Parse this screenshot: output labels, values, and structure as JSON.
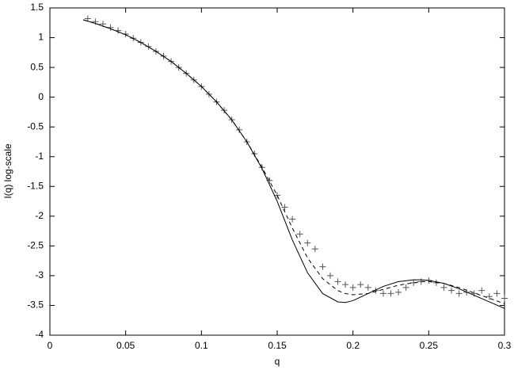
{
  "chart_data": {
    "type": "line",
    "xlabel": "q",
    "ylabel": "I(q) log-scale",
    "xlim": [
      0,
      0.3
    ],
    "ylim": [
      -4,
      1.5
    ],
    "xticks": [
      0,
      0.05,
      0.1,
      0.15,
      0.2,
      0.25,
      0.3
    ],
    "yticks": [
      1.5,
      1,
      0.5,
      0,
      -0.5,
      -1,
      -1.5,
      -2,
      -2.5,
      -3,
      -3.5,
      -4
    ],
    "series": [
      {
        "type": "scatter",
        "color": "#555555",
        "x": [
          0.025,
          0.03,
          0.035,
          0.04,
          0.045,
          0.05,
          0.055,
          0.06,
          0.065,
          0.07,
          0.075,
          0.08,
          0.085,
          0.09,
          0.095,
          0.1,
          0.105,
          0.11,
          0.115,
          0.12,
          0.125,
          0.13,
          0.135,
          0.14,
          0.145,
          0.15,
          0.155,
          0.16,
          0.165,
          0.17,
          0.175,
          0.18,
          0.185,
          0.19,
          0.195,
          0.2,
          0.205,
          0.21,
          0.215,
          0.22,
          0.225,
          0.23,
          0.235,
          0.24,
          0.245,
          0.25,
          0.255,
          0.26,
          0.265,
          0.27,
          0.275,
          0.28,
          0.285,
          0.29,
          0.295,
          0.3
        ],
        "values": [
          1.32,
          1.27,
          1.23,
          1.17,
          1.12,
          1.06,
          0.99,
          0.92,
          0.85,
          0.77,
          0.69,
          0.6,
          0.5,
          0.4,
          0.29,
          0.18,
          0.05,
          -0.08,
          -0.22,
          -0.38,
          -0.55,
          -0.75,
          -0.95,
          -1.18,
          -1.4,
          -1.65,
          -1.85,
          -2.05,
          -2.3,
          -2.45,
          -2.55,
          -2.85,
          -3.0,
          -3.1,
          -3.15,
          -3.2,
          -3.15,
          -3.2,
          -3.25,
          -3.3,
          -3.3,
          -3.28,
          -3.2,
          -3.12,
          -3.1,
          -3.08,
          -3.12,
          -3.2,
          -3.25,
          -3.3,
          -3.28,
          -3.3,
          -3.25,
          -3.35,
          -3.3,
          -3.38
        ]
      },
      {
        "type": "line",
        "color": "#000000",
        "dashed": false,
        "x": [
          0.022,
          0.03,
          0.04,
          0.05,
          0.06,
          0.07,
          0.08,
          0.09,
          0.1,
          0.11,
          0.12,
          0.13,
          0.14,
          0.15,
          0.16,
          0.17,
          0.18,
          0.19,
          0.195,
          0.2,
          0.21,
          0.22,
          0.23,
          0.24,
          0.245,
          0.25,
          0.26,
          0.27,
          0.28,
          0.29,
          0.3
        ],
        "values": [
          1.3,
          1.24,
          1.15,
          1.05,
          0.92,
          0.77,
          0.6,
          0.4,
          0.18,
          -0.08,
          -0.38,
          -0.75,
          -1.2,
          -1.75,
          -2.4,
          -2.95,
          -3.3,
          -3.44,
          -3.45,
          -3.42,
          -3.3,
          -3.18,
          -3.1,
          -3.07,
          -3.07,
          -3.08,
          -3.13,
          -3.22,
          -3.33,
          -3.44,
          -3.55
        ]
      },
      {
        "type": "line",
        "color": "#000000",
        "dashed": true,
        "x": [
          0.022,
          0.03,
          0.04,
          0.05,
          0.06,
          0.07,
          0.08,
          0.09,
          0.1,
          0.11,
          0.12,
          0.13,
          0.14,
          0.15,
          0.16,
          0.17,
          0.18,
          0.19,
          0.195,
          0.2,
          0.21,
          0.22,
          0.23,
          0.24,
          0.245,
          0.25,
          0.26,
          0.27,
          0.28,
          0.29,
          0.3
        ],
        "values": [
          1.3,
          1.24,
          1.15,
          1.05,
          0.92,
          0.77,
          0.6,
          0.4,
          0.18,
          -0.08,
          -0.38,
          -0.75,
          -1.18,
          -1.65,
          -2.2,
          -2.7,
          -3.05,
          -3.25,
          -3.3,
          -3.32,
          -3.3,
          -3.23,
          -3.16,
          -3.12,
          -3.1,
          -3.1,
          -3.13,
          -3.2,
          -3.29,
          -3.38,
          -3.47
        ]
      }
    ]
  }
}
